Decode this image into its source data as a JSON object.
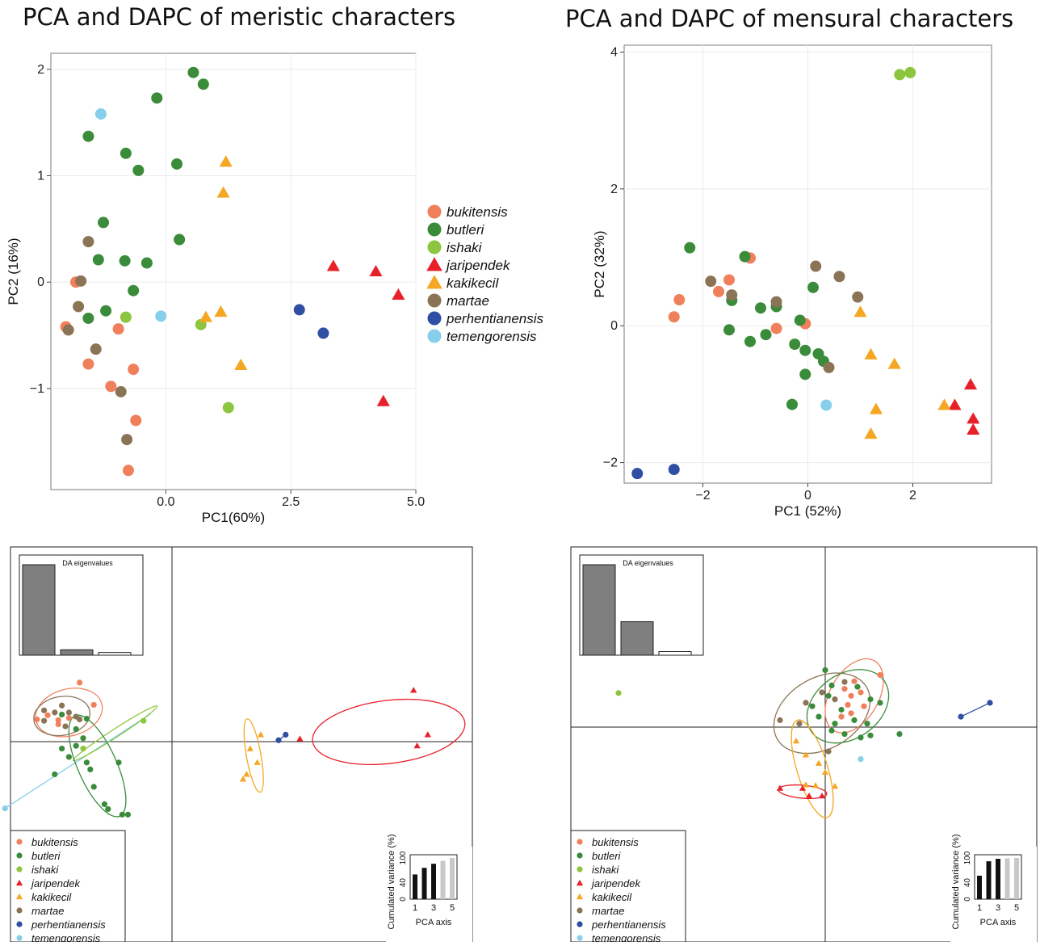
{
  "titles": {
    "left": "PCA and DAPC of meristic characters",
    "right": "PCA and DAPC of mensural characters"
  },
  "species": [
    "bukitensis",
    "butleri",
    "ishaki",
    "jaripendek",
    "kakikecil",
    "martae",
    "perhentianensis",
    "temengorensis"
  ],
  "colors": {
    "bukitensis": "#f0805c",
    "butleri": "#3a8c3a",
    "ishaki": "#8cc63f",
    "jaripendek": "#e8202a",
    "kakikecil": "#f5a623",
    "martae": "#8b7355",
    "perhentianensis": "#2e4fa3",
    "temengorensis": "#87ceeb"
  },
  "shapes": {
    "bukitensis": "circle",
    "butleri": "circle",
    "ishaki": "circle",
    "jaripendek": "triangle",
    "kakikecil": "triangle",
    "martae": "circle",
    "perhentianensis": "circle",
    "temengorensis": "circle"
  },
  "chart_data": [
    {
      "type": "scatter",
      "xlabel": "PC1(60%)",
      "ylabel": "PC2 (16%)",
      "xlim": [
        -2.3,
        5.0
      ],
      "ylim": [
        -1.95,
        2.15
      ],
      "xticks": [
        0.0,
        2.5,
        5.0
      ],
      "xtick_labels": [
        "0.0",
        "2.5",
        "5.0"
      ],
      "yticks": [
        -1,
        0,
        1,
        2
      ],
      "ytick_labels": [
        "−1",
        "0",
        "1",
        "2"
      ],
      "grid": true,
      "legend_position": "right",
      "series": [
        {
          "name": "bukitensis",
          "points": [
            [
              -1.8,
              0.0
            ],
            [
              -2.0,
              -0.42
            ],
            [
              -1.55,
              -0.77
            ],
            [
              -0.95,
              -0.44
            ],
            [
              -1.1,
              -0.98
            ],
            [
              -0.65,
              -0.82
            ],
            [
              -0.6,
              -1.3
            ],
            [
              -0.75,
              -1.77
            ]
          ]
        },
        {
          "name": "butleri",
          "points": [
            [
              0.55,
              1.97
            ],
            [
              0.75,
              1.86
            ],
            [
              -0.18,
              1.73
            ],
            [
              -1.55,
              1.37
            ],
            [
              -0.8,
              1.21
            ],
            [
              -0.55,
              1.05
            ],
            [
              0.22,
              1.11
            ],
            [
              -1.25,
              0.56
            ],
            [
              0.27,
              0.4
            ],
            [
              -1.35,
              0.21
            ],
            [
              -0.82,
              0.2
            ],
            [
              -0.38,
              0.18
            ],
            [
              -0.65,
              -0.08
            ],
            [
              -1.2,
              -0.27
            ],
            [
              -1.55,
              -0.34
            ]
          ]
        },
        {
          "name": "ishaki",
          "points": [
            [
              -0.8,
              -0.33
            ],
            [
              0.7,
              -0.4
            ],
            [
              1.25,
              -1.18
            ]
          ]
        },
        {
          "name": "jaripendek",
          "points": [
            [
              3.35,
              0.15
            ],
            [
              4.2,
              0.1
            ],
            [
              4.65,
              -0.12
            ],
            [
              4.35,
              -1.12
            ]
          ]
        },
        {
          "name": "kakikecil",
          "points": [
            [
              1.2,
              1.13
            ],
            [
              1.15,
              0.84
            ],
            [
              0.8,
              -0.33
            ],
            [
              1.1,
              -0.28
            ],
            [
              1.5,
              -0.78
            ]
          ]
        },
        {
          "name": "martae",
          "points": [
            [
              -1.55,
              0.38
            ],
            [
              -1.7,
              0.01
            ],
            [
              -1.75,
              -0.23
            ],
            [
              -1.95,
              -0.45
            ],
            [
              -1.4,
              -0.63
            ],
            [
              -0.9,
              -1.03
            ],
            [
              -0.78,
              -1.48
            ]
          ]
        },
        {
          "name": "perhentianensis",
          "points": [
            [
              2.67,
              -0.26
            ],
            [
              3.15,
              -0.48
            ]
          ]
        },
        {
          "name": "temengorensis",
          "points": [
            [
              -1.3,
              1.58
            ],
            [
              -0.1,
              -0.32
            ]
          ]
        }
      ]
    },
    {
      "type": "scatter",
      "xlabel": "PC1 (52%)",
      "ylabel": "PC2 (32%)",
      "xlim": [
        -3.5,
        3.5
      ],
      "ylim": [
        -2.3,
        4.1
      ],
      "xticks": [
        -2,
        0,
        2
      ],
      "xtick_labels": [
        "−2",
        "0",
        "2"
      ],
      "yticks": [
        -2,
        0,
        2,
        4
      ],
      "ytick_labels": [
        "−2",
        "0",
        "2",
        "4"
      ],
      "grid": true,
      "series": [
        {
          "name": "bukitensis",
          "points": [
            [
              -2.45,
              0.38
            ],
            [
              -2.55,
              0.13
            ],
            [
              -1.5,
              0.67
            ],
            [
              -1.7,
              0.5
            ],
            [
              -1.1,
              0.99
            ],
            [
              -0.6,
              -0.04
            ],
            [
              -0.05,
              0.03
            ]
          ]
        },
        {
          "name": "butleri",
          "points": [
            [
              -2.25,
              1.14
            ],
            [
              -1.2,
              1.01
            ],
            [
              -1.45,
              0.37
            ],
            [
              -0.9,
              0.26
            ],
            [
              -0.6,
              0.28
            ],
            [
              -1.5,
              -0.06
            ],
            [
              -1.1,
              -0.23
            ],
            [
              -0.8,
              -0.13
            ],
            [
              0.1,
              0.56
            ],
            [
              -0.15,
              0.08
            ],
            [
              -0.25,
              -0.27
            ],
            [
              -0.05,
              -0.36
            ],
            [
              0.2,
              -0.41
            ],
            [
              0.3,
              -0.52
            ],
            [
              -0.05,
              -0.71
            ],
            [
              -0.3,
              -1.15
            ]
          ]
        },
        {
          "name": "ishaki",
          "points": [
            [
              1.75,
              3.67
            ],
            [
              1.95,
              3.7
            ]
          ]
        },
        {
          "name": "jaripendek",
          "points": [
            [
              3.1,
              -0.86
            ],
            [
              2.8,
              -1.16
            ],
            [
              3.15,
              -1.36
            ],
            [
              3.15,
              -1.52
            ]
          ]
        },
        {
          "name": "kakikecil",
          "points": [
            [
              1.0,
              0.2
            ],
            [
              1.2,
              -0.42
            ],
            [
              1.65,
              -0.56
            ],
            [
              1.3,
              -1.22
            ],
            [
              1.2,
              -1.58
            ],
            [
              2.6,
              -1.16
            ]
          ]
        },
        {
          "name": "martae",
          "points": [
            [
              -1.85,
              0.65
            ],
            [
              -1.45,
              0.45
            ],
            [
              0.15,
              0.87
            ],
            [
              0.6,
              0.72
            ],
            [
              -0.6,
              0.35
            ],
            [
              0.95,
              0.42
            ],
            [
              0.4,
              -0.61
            ]
          ]
        },
        {
          "name": "perhentianensis",
          "points": [
            [
              -3.25,
              -2.16
            ],
            [
              -2.55,
              -2.1
            ]
          ]
        },
        {
          "name": "temengorensis",
          "points": [
            [
              0.35,
              -1.16
            ]
          ]
        }
      ]
    },
    {
      "type": "scatter",
      "inset_eigen_title": "DA eigenvalues",
      "eigen_values": [
        1.0,
        0.06,
        0.03
      ],
      "inset_var_ylabel": "Cumulated variance (%)",
      "inset_var_xlabel": "PCA axis",
      "inset_var_yticks": [
        "0",
        "40",
        "100"
      ],
      "inset_var_xticks": [
        "1",
        "3",
        "5"
      ],
      "cumulated_variance": [
        60,
        76,
        86,
        93,
        100
      ],
      "retained_axes": 3,
      "series": [
        {
          "name": "bukitensis",
          "points": [
            [
              -1.3,
              0.85
            ],
            [
              -1.1,
              0.53
            ],
            [
              -1.75,
              0.38
            ],
            [
              -1.6,
              0.31
            ],
            [
              -1.45,
              0.34
            ],
            [
              -1.9,
              0.32
            ],
            [
              -1.6,
              0.25
            ]
          ]
        },
        {
          "name": "butleri",
          "points": [
            [
              -1.55,
              0.39
            ],
            [
              -1.2,
              0.33
            ],
            [
              -1.35,
              0.18
            ],
            [
              -1.25,
              0.05
            ],
            [
              -1.55,
              -0.1
            ],
            [
              -1.45,
              -0.22
            ],
            [
              -1.2,
              -0.3
            ],
            [
              -1.15,
              -0.4
            ],
            [
              -0.75,
              -0.3
            ],
            [
              -1.65,
              -0.47
            ],
            [
              -1.1,
              -0.65
            ],
            [
              -0.95,
              -0.9
            ],
            [
              -0.9,
              -0.97
            ],
            [
              -0.7,
              -1.05
            ],
            [
              -0.62,
              -1.05
            ],
            [
              -1.35,
              -0.06
            ]
          ]
        },
        {
          "name": "ishaki",
          "points": [
            [
              -0.4,
              0.3
            ],
            [
              -1.25,
              -0.1
            ]
          ]
        },
        {
          "name": "jaripendek",
          "points": [
            [
              3.4,
              0.74
            ],
            [
              3.6,
              0.1
            ],
            [
              3.45,
              -0.06
            ],
            [
              1.8,
              0.04
            ]
          ]
        },
        {
          "name": "kakikecil",
          "points": [
            [
              1.25,
              0.1
            ],
            [
              1.1,
              -0.1
            ],
            [
              1.2,
              -0.3
            ],
            [
              1.0,
              -0.54
            ],
            [
              1.05,
              -0.47
            ]
          ]
        },
        {
          "name": "martae",
          "points": [
            [
              -1.55,
              0.52
            ],
            [
              -1.8,
              0.45
            ],
            [
              -1.65,
              0.42
            ],
            [
              -1.8,
              0.3
            ],
            [
              -1.45,
              0.42
            ],
            [
              -1.3,
              0.32
            ],
            [
              -1.5,
              0.22
            ],
            [
              -1.35,
              0.36
            ]
          ]
        },
        {
          "name": "perhentianensis",
          "points": [
            [
              1.6,
              0.1
            ],
            [
              1.5,
              0.02
            ]
          ]
        },
        {
          "name": "temengorensis",
          "points": [
            [
              -2.35,
              -0.96
            ]
          ]
        }
      ]
    },
    {
      "type": "scatter",
      "inset_eigen_title": "DA eigenvalues",
      "eigen_values": [
        1.0,
        0.37,
        0.04
      ],
      "inset_var_ylabel": "Cumulated variance (%)",
      "inset_var_xlabel": "PCA axis",
      "inset_var_yticks": [
        "0",
        "40",
        "100"
      ],
      "inset_var_xticks": [
        "1",
        "3",
        "5"
      ],
      "cumulated_variance": [
        57,
        92,
        98,
        99,
        100
      ],
      "retained_axes": 3,
      "series": [
        {
          "name": "bukitensis",
          "points": [
            [
              0.85,
              0.75
            ],
            [
              0.45,
              0.66
            ],
            [
              0.3,
              0.55
            ],
            [
              0.4,
              0.45
            ],
            [
              0.55,
              0.5
            ],
            [
              0.35,
              0.32
            ],
            [
              0.25,
              0.15
            ],
            [
              0.4,
              0.2
            ],
            [
              0.6,
              0.3
            ]
          ]
        },
        {
          "name": "butleri",
          "points": [
            [
              0.0,
              0.82
            ],
            [
              0.1,
              0.6
            ],
            [
              0.5,
              0.58
            ],
            [
              0.7,
              0.4
            ],
            [
              0.85,
              0.35
            ],
            [
              -0.2,
              0.3
            ],
            [
              0.25,
              0.25
            ],
            [
              0.45,
              0.1
            ],
            [
              0.15,
              0.05
            ],
            [
              0.65,
              0.05
            ],
            [
              -0.1,
              0.15
            ],
            [
              0.1,
              -0.05
            ],
            [
              0.3,
              -0.1
            ],
            [
              0.55,
              -0.15
            ],
            [
              1.15,
              -0.1
            ],
            [
              0.7,
              -0.12
            ],
            [
              0.05,
              0.45
            ]
          ]
        },
        {
          "name": "ishaki",
          "points": [
            [
              -3.2,
              0.49
            ]
          ]
        },
        {
          "name": "jaripendek",
          "points": [
            [
              -0.7,
              -0.88
            ],
            [
              -0.35,
              -0.88
            ],
            [
              -0.25,
              -0.99
            ],
            [
              -0.05,
              -0.99
            ]
          ]
        },
        {
          "name": "kakikecil",
          "points": [
            [
              -0.45,
              -0.2
            ],
            [
              -0.3,
              -0.4
            ],
            [
              -0.1,
              -0.52
            ],
            [
              0.0,
              -0.65
            ],
            [
              0.15,
              -0.85
            ],
            [
              -0.3,
              -0.83
            ],
            [
              -0.15,
              -0.84
            ]
          ]
        },
        {
          "name": "martae",
          "points": [
            [
              -0.7,
              0.1
            ],
            [
              -0.3,
              0.35
            ],
            [
              -0.05,
              0.5
            ],
            [
              0.15,
              0.4
            ],
            [
              0.3,
              0.65
            ],
            [
              0.05,
              -0.35
            ],
            [
              -0.4,
              0.05
            ]
          ]
        },
        {
          "name": "perhentianensis",
          "points": [
            [
              2.1,
              0.15
            ],
            [
              2.55,
              0.35
            ]
          ]
        },
        {
          "name": "temengorensis",
          "points": [
            [
              0.55,
              -0.46
            ]
          ]
        }
      ]
    }
  ]
}
